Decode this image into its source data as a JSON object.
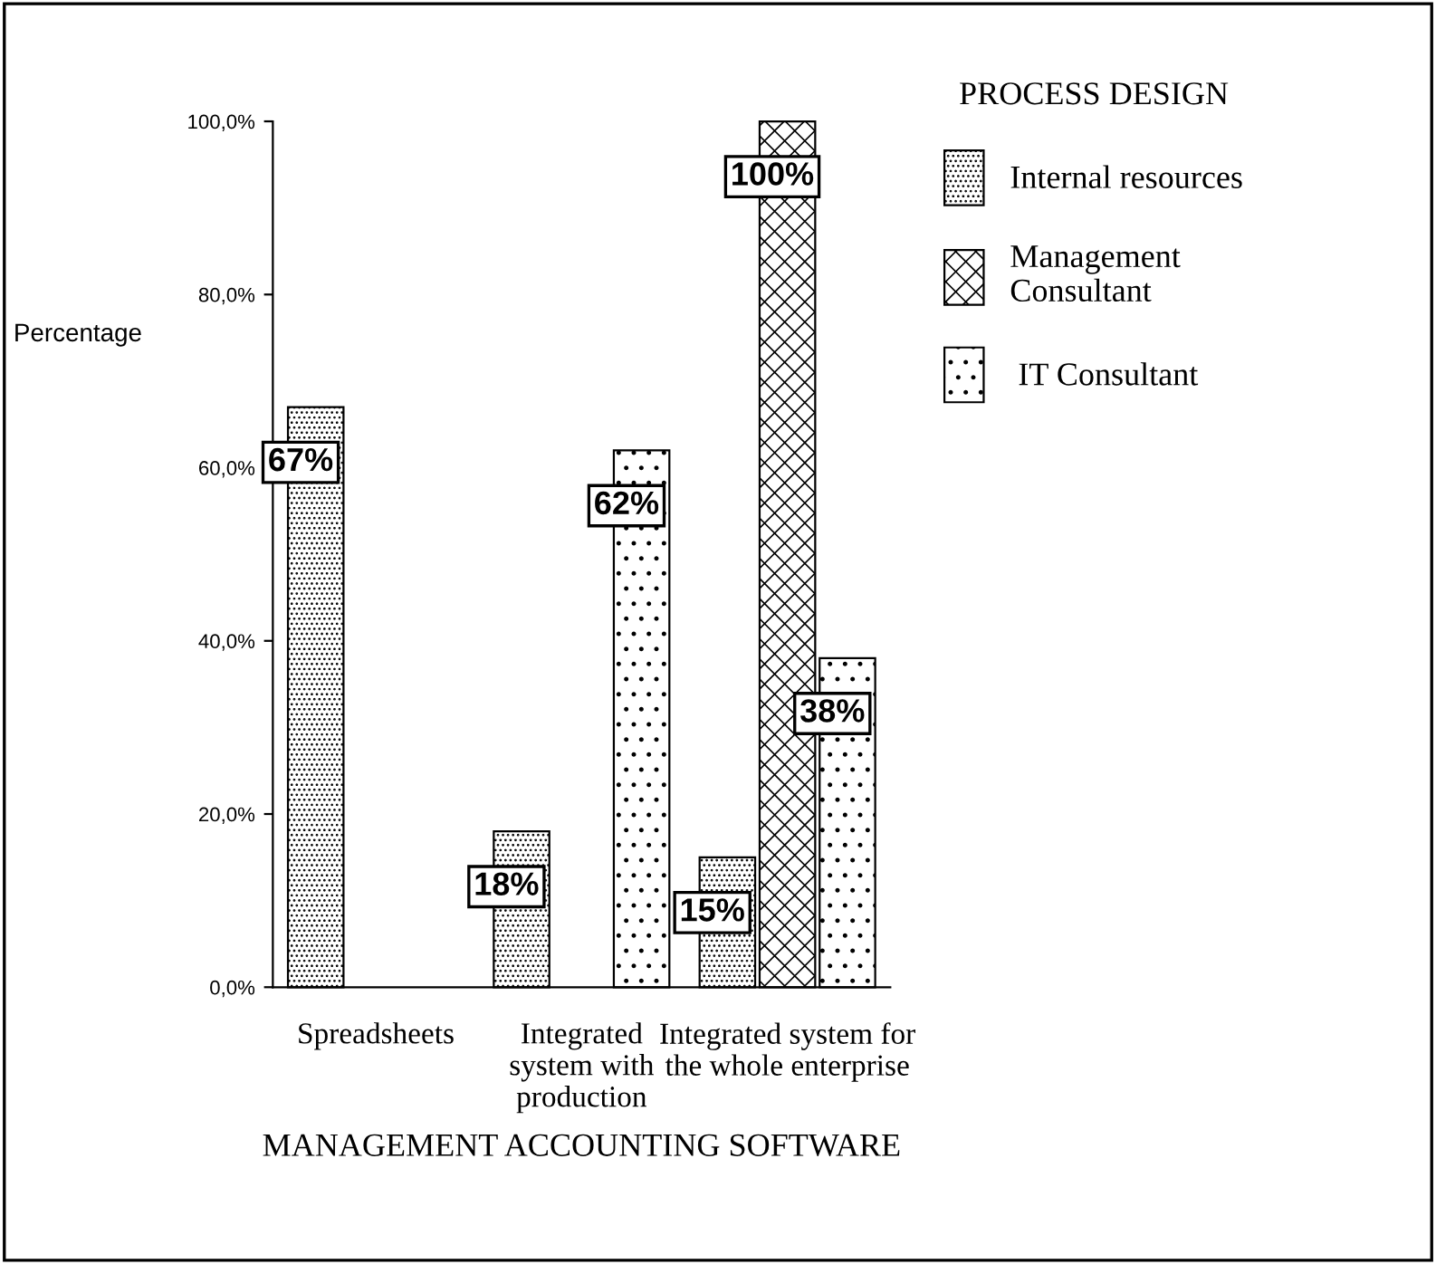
{
  "chart_data": {
    "type": "bar",
    "xlabel": "MANAGEMENT ACCOUNTING SOFTWARE",
    "ylabel": "Percentage",
    "legend_title": "PROCESS DESIGN",
    "legend": "top right",
    "categories": [
      "Spreadsheets",
      "Integrated\nsystem with\nproduction",
      "Integrated system for\nthe whole enterprise"
    ],
    "series": [
      {
        "name": "Internal resources",
        "color": "#000000",
        "values": [
          67,
          18,
          15
        ],
        "value_labels": [
          "67%",
          "18%",
          "15%"
        ]
      },
      {
        "name": "Management\nConsultant",
        "color": "#000000",
        "values": [
          null,
          null,
          100
        ],
        "value_labels": [
          null,
          null,
          "100%"
        ]
      },
      {
        "name": " IT Consultant",
        "color": "#000000",
        "values": [
          null,
          62,
          38
        ],
        "value_labels": [
          null,
          "62%",
          "38%"
        ]
      }
    ],
    "ylim": [
      0,
      100
    ],
    "yticks": [
      {
        "value": 0,
        "label": "0,0%"
      },
      {
        "value": 20,
        "label": "20,0%"
      },
      {
        "value": 40,
        "label": "40,0%"
      },
      {
        "value": 60,
        "label": "60,0%"
      },
      {
        "value": 80,
        "label": "80,0%"
      },
      {
        "value": 100,
        "label": "100,0%"
      }
    ],
    "grid": false
  }
}
